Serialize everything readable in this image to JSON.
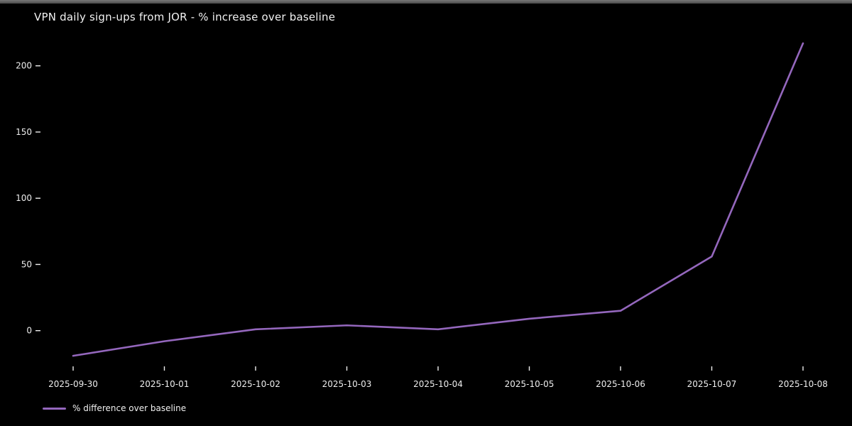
{
  "window": {
    "top_edge_color": "#5c5c5c"
  },
  "chart": {
    "title": "VPN daily sign-ups from JOR - % increase over baseline",
    "background_color": "#000000",
    "text_color": "#eeeeee",
    "line_color": "#9467bd",
    "legend": {
      "label": "% difference over baseline"
    }
  },
  "chart_data": {
    "type": "line",
    "title": "VPN daily sign-ups from JOR - % increase over baseline",
    "x": [
      "2025-09-30",
      "2025-10-01",
      "2025-10-02",
      "2025-10-03",
      "2025-10-04",
      "2025-10-05",
      "2025-10-06",
      "2025-10-07",
      "2025-10-08"
    ],
    "series": [
      {
        "name": "% difference over baseline",
        "color": "#9467bd",
        "values": [
          -19,
          -8,
          1,
          4,
          1,
          9,
          15,
          56,
          217
        ]
      }
    ],
    "xlabel": "",
    "ylabel": "",
    "yticks": [
      0,
      50,
      100,
      150,
      200
    ],
    "ylim": [
      -30,
      225
    ],
    "grid": false,
    "legend_position": "lower-left-below-axis",
    "background": "dark"
  }
}
